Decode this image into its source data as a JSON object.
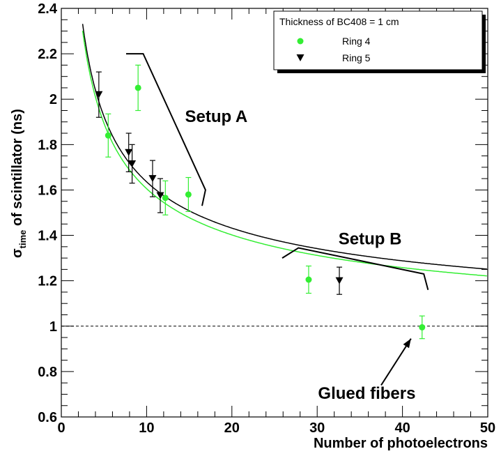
{
  "chart_data": {
    "type": "scatter",
    "xlabel": "Number of photoelectrons",
    "ylabel_main": "of scintillator (ns)",
    "ylabel_symbol": "σ",
    "ylabel_subscript": "time",
    "xlim": [
      0,
      50
    ],
    "ylim": [
      0.6,
      2.4
    ],
    "x_ticks": [
      0,
      10,
      20,
      30,
      40,
      50
    ],
    "y_ticks": [
      0.6,
      0.8,
      1,
      1.2,
      1.4,
      1.6,
      1.8,
      2,
      2.2,
      2.4
    ],
    "x_tick_labels": [
      "0",
      "10",
      "20",
      "30",
      "40",
      "50"
    ],
    "y_tick_labels": [
      "0.6",
      "0.8",
      "1",
      "1.2",
      "1.4",
      "1.6",
      "1.8",
      "2",
      "2.2",
      "2.4"
    ],
    "grid": false,
    "legend": {
      "placement": "top-right",
      "title": "Thickness of BC408 = 1 cm",
      "entries": [
        "Ring 4",
        "Ring 5"
      ]
    },
    "series": [
      {
        "name": "Ring 4",
        "color": "#33ee33",
        "marker": "circle",
        "points": [
          {
            "x": 5.5,
            "y": 1.84,
            "err": 0.095
          },
          {
            "x": 9.0,
            "y": 2.05,
            "err": 0.1
          },
          {
            "x": 12.2,
            "y": 1.565,
            "err": 0.075
          },
          {
            "x": 14.9,
            "y": 1.58,
            "err": 0.075
          },
          {
            "x": 29.0,
            "y": 1.205,
            "err": 0.06
          },
          {
            "x": 42.3,
            "y": 0.995,
            "err": 0.05
          }
        ]
      },
      {
        "name": "Ring 5",
        "color": "#000000",
        "marker": "triangle-down",
        "points": [
          {
            "x": 4.4,
            "y": 2.02,
            "err": 0.1
          },
          {
            "x": 7.9,
            "y": 1.765,
            "err": 0.085
          },
          {
            "x": 8.3,
            "y": 1.715,
            "err": 0.085
          },
          {
            "x": 10.7,
            "y": 1.65,
            "err": 0.08
          },
          {
            "x": 11.6,
            "y": 1.575,
            "err": 0.075
          },
          {
            "x": 32.6,
            "y": 1.2,
            "err": 0.06
          }
        ]
      }
    ],
    "fits": [
      {
        "color": "#000000",
        "a": 0.94,
        "b": 2.2
      },
      {
        "color": "#33ee33",
        "a": 0.91,
        "b": 2.2
      }
    ],
    "reference_line": {
      "y": 1.0,
      "style": "dashed",
      "color": "#000000"
    },
    "annotations": [
      {
        "text": "Setup A",
        "x": 14.5,
        "y": 1.9,
        "bracket": [
          [
            7.6,
            2.2
          ],
          [
            9.6,
            2.2
          ],
          [
            16.9,
            1.6
          ],
          [
            16.5,
            1.53
          ]
        ]
      },
      {
        "text": "Setup B",
        "x": 32.5,
        "y": 1.36,
        "bracket": [
          [
            25.9,
            1.3
          ],
          [
            27.8,
            1.345
          ],
          [
            42.5,
            1.23
          ],
          [
            43.0,
            1.16
          ]
        ]
      },
      {
        "text": "Glued fibers",
        "x": 30.1,
        "y": 0.68,
        "arrow": [
          [
            37.5,
            0.74
          ],
          [
            41.0,
            0.945
          ]
        ]
      }
    ]
  }
}
